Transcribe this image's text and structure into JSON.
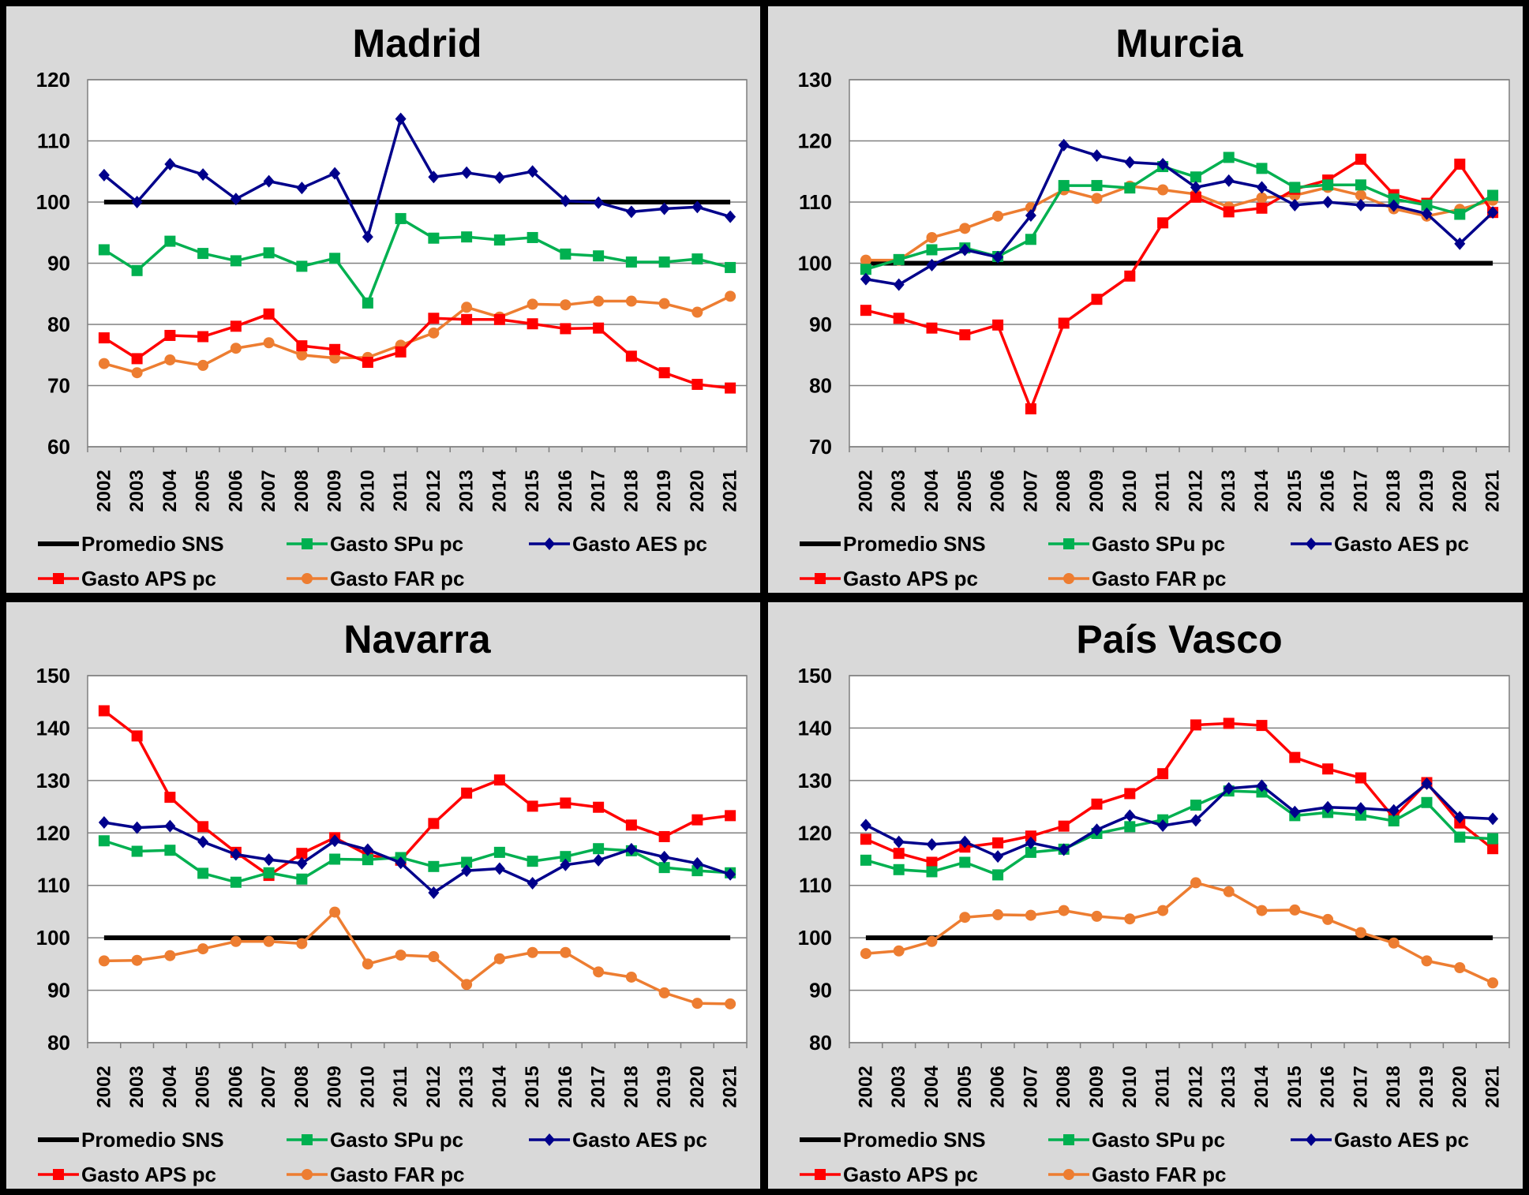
{
  "series_styles": {
    "promedio": {
      "color": "#000000",
      "marker": "none"
    },
    "spu": {
      "color": "#00B050",
      "marker": "square"
    },
    "aes": {
      "color": "#00008B",
      "marker": "diamond"
    },
    "aps": {
      "color": "#FF0000",
      "marker": "square"
    },
    "far": {
      "color": "#ED7D31",
      "marker": "circle"
    }
  },
  "colors": {
    "panel_bg": "#D9D9D9",
    "plot_bg": "#FFFFFF",
    "border": "#000000",
    "grid": "#808080"
  },
  "chart_data": [
    {
      "type": "line",
      "title": "Madrid",
      "ylim": [
        60,
        120
      ],
      "yticks": [
        60,
        70,
        80,
        90,
        100,
        110,
        120
      ],
      "categories": [
        "2002",
        "2003",
        "2004",
        "2005",
        "2006",
        "2007",
        "2008",
        "2009",
        "2010",
        "2011",
        "2012",
        "2013",
        "2014",
        "2015",
        "2016",
        "2017",
        "2018",
        "2019",
        "2020",
        "2021"
      ],
      "series": [
        {
          "key": "promedio",
          "name": "Promedio SNS",
          "values": [
            100,
            100,
            100,
            100,
            100,
            100,
            100,
            100,
            100,
            100,
            100,
            100,
            100,
            100,
            100,
            100,
            100,
            100,
            100,
            100
          ]
        },
        {
          "key": "spu",
          "name": "Gasto SPu pc",
          "values": [
            92.2,
            88.8,
            93.6,
            91.6,
            90.4,
            91.7,
            89.5,
            90.8,
            83.5,
            97.3,
            94.1,
            94.3,
            93.8,
            94.2,
            91.5,
            91.2,
            90.2,
            90.2,
            90.7,
            89.3
          ]
        },
        {
          "key": "aes",
          "name": "Gasto AES pc",
          "values": [
            104.4,
            100,
            106.2,
            104.5,
            100.5,
            103.4,
            102.3,
            104.7,
            94.3,
            113.6,
            104.1,
            104.8,
            104,
            105,
            100.2,
            99.9,
            98.4,
            98.9,
            99.2,
            97.6
          ]
        },
        {
          "key": "aps",
          "name": "Gasto APS pc",
          "values": [
            77.8,
            74.4,
            78.2,
            78,
            79.7,
            81.7,
            76.5,
            75.9,
            73.8,
            75.5,
            81,
            80.8,
            80.8,
            80.1,
            79.3,
            79.4,
            74.8,
            72.1,
            70.2,
            69.6
          ]
        },
        {
          "key": "far",
          "name": "Gasto FAR pc",
          "values": [
            73.6,
            72.1,
            74.2,
            73.3,
            76.1,
            77,
            75,
            74.5,
            74.6,
            76.6,
            78.6,
            82.8,
            81.2,
            83.3,
            83.2,
            83.8,
            83.8,
            83.4,
            82,
            84.6
          ]
        }
      ]
    },
    {
      "type": "line",
      "title": "Murcia",
      "ylim": [
        70,
        130
      ],
      "yticks": [
        70,
        80,
        90,
        100,
        110,
        120,
        130
      ],
      "categories": [
        "2002",
        "2003",
        "2004",
        "2005",
        "2006",
        "2007",
        "2008",
        "2009",
        "2010",
        "2011",
        "2012",
        "2013",
        "2014",
        "2015",
        "2016",
        "2017",
        "2018",
        "2019",
        "2020",
        "2021"
      ],
      "series": [
        {
          "key": "promedio",
          "name": "Promedio SNS",
          "values": [
            100,
            100,
            100,
            100,
            100,
            100,
            100,
            100,
            100,
            100,
            100,
            100,
            100,
            100,
            100,
            100,
            100,
            100,
            100,
            100
          ]
        },
        {
          "key": "spu",
          "name": "Gasto SPu pc",
          "values": [
            99,
            100.6,
            102.2,
            102.5,
            101.1,
            103.9,
            112.7,
            112.7,
            112.3,
            115.8,
            114.1,
            117.3,
            115.5,
            112.4,
            112.8,
            112.8,
            110.5,
            109.5,
            108,
            111.1
          ]
        },
        {
          "key": "aes",
          "name": "Gasto AES pc",
          "values": [
            97.4,
            96.5,
            99.7,
            102.2,
            101,
            107.8,
            119.3,
            117.6,
            116.5,
            116.2,
            112.4,
            113.5,
            112.4,
            109.5,
            110,
            109.5,
            109.4,
            108.1,
            103.2,
            108.3
          ]
        },
        {
          "key": "aps",
          "name": "Gasto APS pc",
          "values": [
            92.3,
            91,
            89.4,
            88.3,
            89.9,
            76.2,
            90.2,
            94.1,
            97.9,
            106.6,
            110.8,
            108.4,
            109,
            112.1,
            113.6,
            117,
            111.2,
            109.8,
            116.2,
            108.3
          ]
        },
        {
          "key": "far",
          "name": "Gasto FAR pc",
          "values": [
            100.5,
            100.5,
            104.2,
            105.7,
            107.7,
            109.1,
            112,
            110.6,
            112.6,
            112,
            111.3,
            109.2,
            110.7,
            111.1,
            112.4,
            111.1,
            108.9,
            107.7,
            108.8,
            110.3
          ]
        }
      ]
    },
    {
      "type": "line",
      "title": "Navarra",
      "ylim": [
        80,
        150
      ],
      "yticks": [
        80,
        90,
        100,
        110,
        120,
        130,
        140,
        150
      ],
      "categories": [
        "2002",
        "2003",
        "2004",
        "2005",
        "2006",
        "2007",
        "2008",
        "2009",
        "2010",
        "2011",
        "2012",
        "2013",
        "2014",
        "2015",
        "2016",
        "2017",
        "2018",
        "2019",
        "2020",
        "2021"
      ],
      "series": [
        {
          "key": "promedio",
          "name": "Promedio SNS",
          "values": [
            100,
            100,
            100,
            100,
            100,
            100,
            100,
            100,
            100,
            100,
            100,
            100,
            100,
            100,
            100,
            100,
            100,
            100,
            100,
            100
          ]
        },
        {
          "key": "spu",
          "name": "Gasto SPu pc",
          "values": [
            118.5,
            116.5,
            116.7,
            112.3,
            110.6,
            112.4,
            111.2,
            115,
            114.9,
            115.3,
            113.6,
            114.4,
            116.3,
            114.6,
            115.5,
            117,
            116.6,
            113.4,
            112.8,
            112.4
          ]
        },
        {
          "key": "aes",
          "name": "Gasto AES pc",
          "values": [
            122,
            121,
            121.3,
            118.3,
            115.9,
            114.9,
            114.2,
            118.5,
            116.8,
            114.3,
            108.6,
            112.8,
            113.2,
            110.4,
            113.9,
            114.8,
            116.9,
            115.4,
            114.2,
            112.1
          ]
        },
        {
          "key": "aps",
          "name": "Gasto APS pc",
          "values": [
            143.3,
            138.5,
            126.8,
            121.2,
            116.3,
            111.9,
            116.1,
            119.1,
            115.8,
            114.8,
            121.8,
            127.6,
            130.1,
            125.1,
            125.7,
            124.9,
            121.5,
            119.3,
            122.5,
            123.3
          ]
        },
        {
          "key": "far",
          "name": "Gasto FAR pc",
          "values": [
            95.6,
            95.7,
            96.6,
            97.9,
            99.3,
            99.3,
            98.9,
            104.9,
            95,
            96.7,
            96.4,
            91.1,
            96,
            97.2,
            97.2,
            93.5,
            92.5,
            89.5,
            87.5,
            87.4
          ]
        }
      ]
    },
    {
      "type": "line",
      "title": "País Vasco",
      "ylim": [
        80,
        150
      ],
      "yticks": [
        80,
        90,
        100,
        110,
        120,
        130,
        140,
        150
      ],
      "categories": [
        "2002",
        "2003",
        "2004",
        "2005",
        "2006",
        "2007",
        "2008",
        "2009",
        "2010",
        "2011",
        "2012",
        "2013",
        "2014",
        "2015",
        "2016",
        "2017",
        "2018",
        "2019",
        "2020",
        "2021"
      ],
      "series": [
        {
          "key": "promedio",
          "name": "Promedio SNS",
          "values": [
            100,
            100,
            100,
            100,
            100,
            100,
            100,
            100,
            100,
            100,
            100,
            100,
            100,
            100,
            100,
            100,
            100,
            100,
            100,
            100
          ]
        },
        {
          "key": "spu",
          "name": "Gasto SPu pc",
          "values": [
            114.8,
            113,
            112.6,
            114.4,
            112,
            116.3,
            116.9,
            119.9,
            121.2,
            122.5,
            125.3,
            128,
            127.8,
            123.3,
            123.9,
            123.4,
            122.3,
            125.8,
            119.2,
            118.9
          ]
        },
        {
          "key": "aes",
          "name": "Gasto AES pc",
          "values": [
            121.5,
            118.3,
            117.8,
            118.3,
            115.5,
            118.1,
            116.8,
            120.6,
            123.3,
            121.4,
            122.4,
            128.5,
            129,
            124,
            124.9,
            124.7,
            124.3,
            129.4,
            123,
            122.7
          ]
        },
        {
          "key": "aps",
          "name": "Gasto APS pc",
          "values": [
            118.8,
            116.1,
            114.4,
            117.3,
            118.1,
            119.4,
            121.3,
            125.5,
            127.5,
            131.3,
            140.6,
            140.9,
            140.5,
            134.4,
            132.2,
            130.5,
            122.9,
            129.6,
            121.9,
            117
          ]
        },
        {
          "key": "far",
          "name": "Gasto FAR pc",
          "values": [
            97,
            97.5,
            99.3,
            103.9,
            104.4,
            104.3,
            105.2,
            104.1,
            103.6,
            105.2,
            110.5,
            108.8,
            105.2,
            105.3,
            103.5,
            101,
            99,
            95.6,
            94.3,
            91.4
          ]
        }
      ]
    }
  ]
}
